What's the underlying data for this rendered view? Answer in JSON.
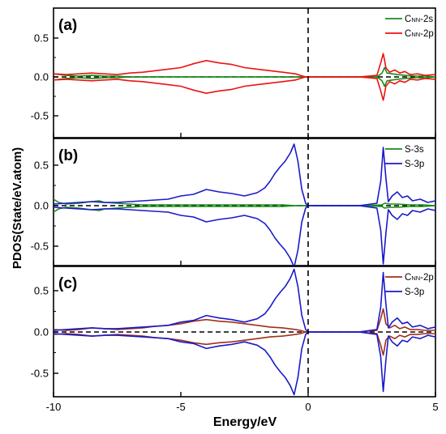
{
  "figure": {
    "ylabel": "PDOS(State/eV.atom)",
    "xlabel": "Energy/eV",
    "x_ticks": [
      "-10",
      "-5",
      "0",
      "5"
    ],
    "y_ticks": [
      "0.5",
      "0.0",
      "-0.5"
    ]
  },
  "colors": {
    "green": "#1a8c1a",
    "red": "#ee1111",
    "blue": "#1a1acc",
    "brown": "#a0301a",
    "axis": "#000000"
  },
  "chart_data": [
    {
      "type": "line",
      "panel_label": "(a)",
      "xlim": [
        -10,
        5
      ],
      "ylim": [
        -0.75,
        0.8
      ],
      "legend_position": "top-right",
      "series": [
        {
          "name": "CNN-2s",
          "legend_main": "C",
          "legend_sub": "NN",
          "legend_rest": "-2s",
          "color": "green",
          "x": [
            -10,
            -9.5,
            -9,
            -8.5,
            -8,
            -7.5,
            -7,
            -6.5,
            -6,
            -5.5,
            -5,
            -4.5,
            -4,
            -3.5,
            -3,
            -2.5,
            -2,
            -1.5,
            -1,
            -0.5,
            -0.3,
            -0.1,
            0.0,
            2.0,
            2.7,
            2.9,
            3.0,
            3.1,
            3.3,
            3.5,
            3.8,
            4.2,
            4.6,
            5.0
          ],
          "y": [
            0.04,
            0.02,
            0.01,
            0.02,
            0.01,
            0.01,
            0.0,
            0.0,
            0.0,
            0.0,
            0.0,
            0.0,
            0.0,
            0.0,
            0.0,
            0.0,
            0.0,
            0.0,
            0.0,
            0.0,
            0.0,
            0.0,
            0.0,
            0.0,
            0.0,
            0.05,
            0.12,
            0.05,
            0.04,
            0.03,
            0.02,
            0.01,
            0.01,
            0.0
          ]
        },
        {
          "name": "CNN-2p",
          "legend_main": "C",
          "legend_sub": "NN",
          "legend_rest": "-2p",
          "color": "red",
          "x": [
            -10,
            -9.5,
            -9,
            -8.5,
            -8,
            -7.5,
            -7,
            -6.5,
            -6,
            -5.5,
            -5,
            -4.5,
            -4,
            -3.5,
            -3,
            -2.5,
            -2,
            -1.5,
            -1,
            -0.5,
            -0.3,
            -0.1,
            0.0,
            2.0,
            2.7,
            2.85,
            2.95,
            3.0,
            3.05,
            3.2,
            3.4,
            3.6,
            3.8,
            4.0,
            4.3,
            4.6,
            5.0
          ],
          "y": [
            0.04,
            0.03,
            0.04,
            0.05,
            0.04,
            0.03,
            0.05,
            0.06,
            0.08,
            0.1,
            0.12,
            0.17,
            0.21,
            0.18,
            0.16,
            0.12,
            0.1,
            0.08,
            0.06,
            0.04,
            0.02,
            0.0,
            0.0,
            0.0,
            0.02,
            0.18,
            0.3,
            0.22,
            0.12,
            0.06,
            0.09,
            0.05,
            0.07,
            0.03,
            0.04,
            0.02,
            0.03
          ]
        }
      ]
    },
    {
      "type": "line",
      "panel_label": "(b)",
      "xlim": [
        -10,
        5
      ],
      "ylim": [
        -0.8,
        0.8
      ],
      "legend_position": "top-right",
      "series": [
        {
          "name": "S-3s",
          "legend_main": "S-3s",
          "color": "green",
          "x": [
            -10,
            -9.8,
            -9.5,
            -9,
            -8.5,
            -8.2,
            -8,
            -7.5,
            -7,
            -6.5,
            -6,
            -5,
            -4,
            -3,
            -2,
            -1,
            -0.5,
            0.0,
            2.0,
            2.9,
            3.0,
            3.2,
            3.5,
            4.0,
            4.5,
            5.0
          ],
          "y": [
            0.08,
            0.04,
            0.02,
            0.03,
            0.05,
            0.06,
            0.04,
            0.03,
            0.02,
            0.01,
            0.01,
            0.01,
            0.01,
            0.01,
            0.01,
            0.01,
            0.0,
            0.0,
            0.0,
            0.01,
            0.03,
            0.02,
            0.02,
            0.01,
            0.01,
            0.0
          ]
        },
        {
          "name": "S-3p",
          "legend_main": "S-3p",
          "color": "blue",
          "x": [
            -10,
            -9.5,
            -9,
            -8.5,
            -8,
            -7.5,
            -7,
            -6.5,
            -6,
            -5.5,
            -5,
            -4.5,
            -4,
            -3.5,
            -3,
            -2.5,
            -2,
            -1.7,
            -1.5,
            -1.3,
            -1.1,
            -0.9,
            -0.7,
            -0.55,
            -0.4,
            -0.25,
            -0.1,
            0.0,
            2.0,
            2.7,
            2.85,
            2.95,
            3.05,
            3.15,
            3.3,
            3.5,
            3.7,
            3.9,
            4.1,
            4.4,
            4.7,
            5.0
          ],
          "y": [
            0.02,
            0.03,
            0.04,
            0.05,
            0.04,
            0.04,
            0.05,
            0.06,
            0.07,
            0.08,
            0.12,
            0.14,
            0.2,
            0.17,
            0.15,
            0.12,
            0.16,
            0.22,
            0.3,
            0.4,
            0.48,
            0.55,
            0.65,
            0.76,
            0.55,
            0.2,
            0.03,
            0.0,
            0.0,
            0.03,
            0.3,
            0.72,
            0.35,
            0.05,
            0.12,
            0.17,
            0.1,
            0.12,
            0.06,
            0.08,
            0.04,
            0.06
          ]
        }
      ]
    },
    {
      "type": "line",
      "panel_label": "(c)",
      "xlim": [
        -10,
        5
      ],
      "ylim": [
        -0.8,
        0.8
      ],
      "legend_position": "top-right",
      "series": [
        {
          "name": "CNN-2p",
          "legend_main": "C",
          "legend_sub": "NN",
          "legend_rest": "-2p",
          "color": "brown",
          "x": [
            -10,
            -9.5,
            -9,
            -8.5,
            -8,
            -7.5,
            -7,
            -6.5,
            -6,
            -5.5,
            -5,
            -4.5,
            -4,
            -3.5,
            -3,
            -2.5,
            -2,
            -1.5,
            -1,
            -0.5,
            -0.3,
            -0.1,
            0.0,
            2.0,
            2.7,
            2.85,
            2.95,
            3.0,
            3.05,
            3.2,
            3.4,
            3.6,
            3.8,
            4.0,
            4.3,
            4.6,
            5.0
          ],
          "y": [
            0.03,
            0.02,
            0.03,
            0.05,
            0.04,
            0.03,
            0.04,
            0.05,
            0.07,
            0.08,
            0.1,
            0.13,
            0.15,
            0.13,
            0.12,
            0.1,
            0.08,
            0.06,
            0.05,
            0.03,
            0.02,
            0.0,
            0.0,
            0.0,
            0.02,
            0.16,
            0.28,
            0.2,
            0.1,
            0.05,
            0.08,
            0.04,
            0.06,
            0.03,
            0.03,
            0.02,
            0.02
          ]
        },
        {
          "name": "S-3p",
          "legend_main": "S-3p",
          "color": "blue",
          "x": [
            -10,
            -9.5,
            -9,
            -8.5,
            -8,
            -7.5,
            -7,
            -6.5,
            -6,
            -5.5,
            -5,
            -4.5,
            -4,
            -3.5,
            -3,
            -2.5,
            -2,
            -1.7,
            -1.5,
            -1.3,
            -1.1,
            -0.9,
            -0.7,
            -0.55,
            -0.4,
            -0.25,
            -0.1,
            0.0,
            2.0,
            2.7,
            2.85,
            2.95,
            3.05,
            3.15,
            3.3,
            3.5,
            3.7,
            3.9,
            4.1,
            4.4,
            4.7,
            5.0
          ],
          "y": [
            0.02,
            0.03,
            0.04,
            0.05,
            0.04,
            0.04,
            0.05,
            0.06,
            0.07,
            0.08,
            0.12,
            0.14,
            0.2,
            0.17,
            0.15,
            0.12,
            0.16,
            0.22,
            0.3,
            0.4,
            0.48,
            0.55,
            0.65,
            0.76,
            0.55,
            0.2,
            0.03,
            0.0,
            0.0,
            0.03,
            0.3,
            0.72,
            0.35,
            0.05,
            0.12,
            0.17,
            0.1,
            0.12,
            0.06,
            0.08,
            0.04,
            0.06
          ]
        }
      ]
    }
  ]
}
